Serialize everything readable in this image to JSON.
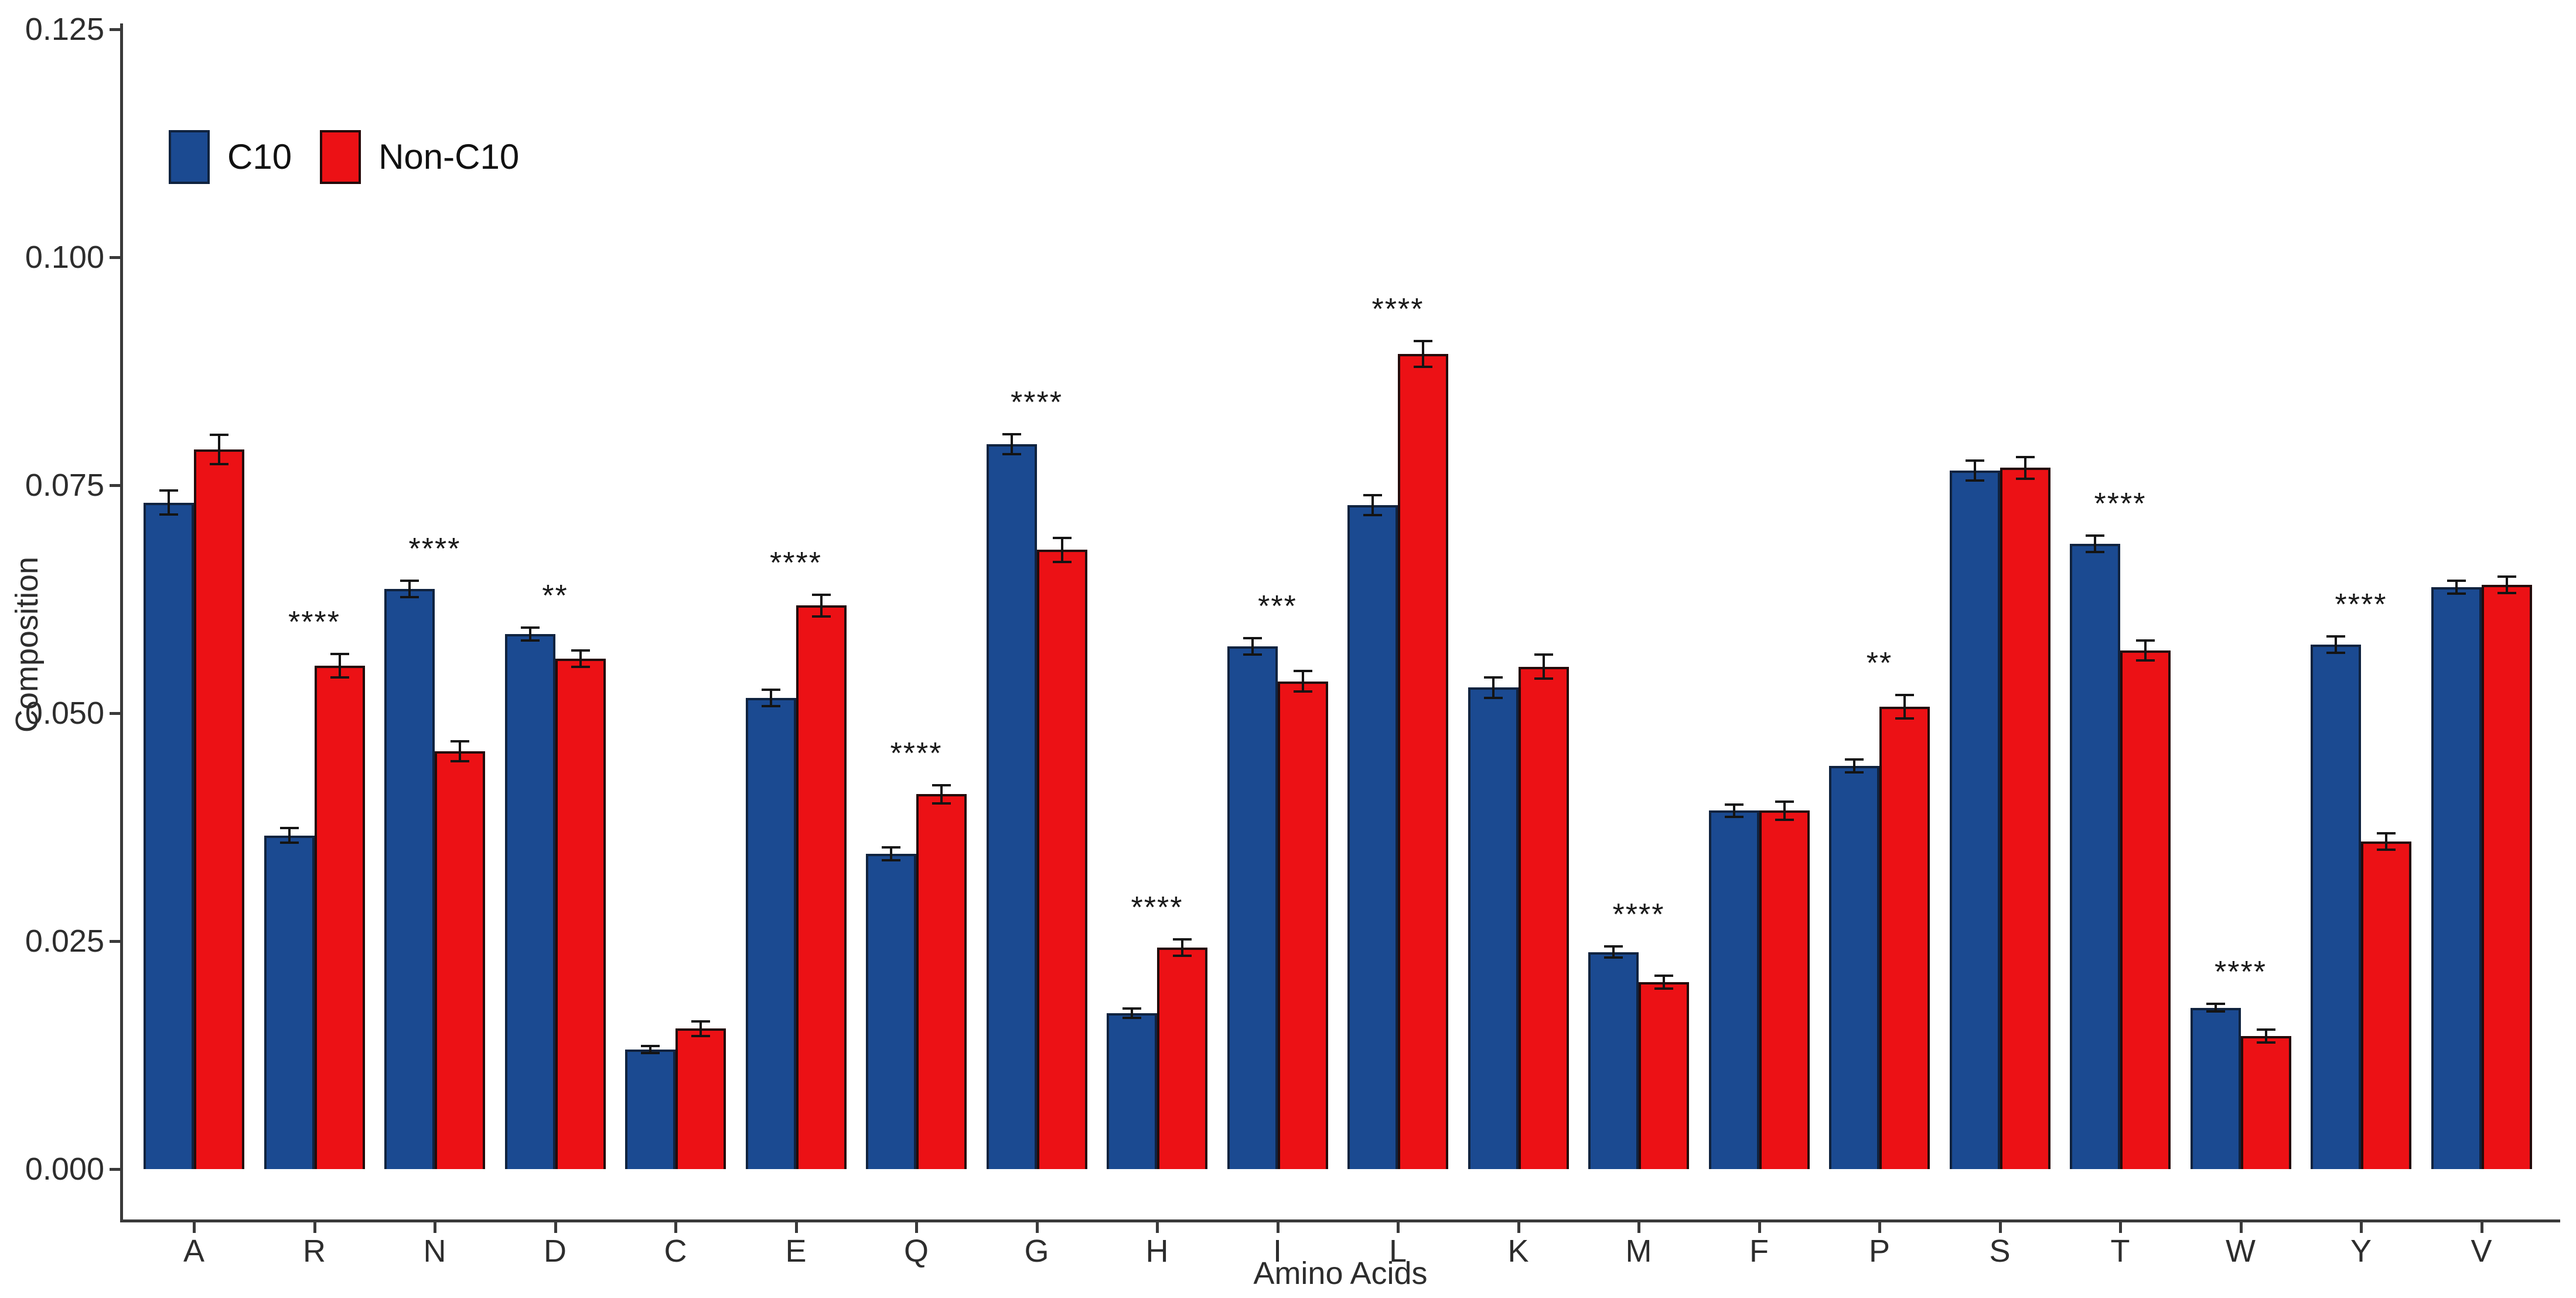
{
  "figure": {
    "background": "#ffffff",
    "axis_color": "#3a3a3a",
    "text_color": "#2d2d2d"
  },
  "chart_data": {
    "type": "bar",
    "title": "",
    "xlabel": "Amino Acids",
    "ylabel": "Composition",
    "ylim": [
      0,
      0.125
    ],
    "grid": false,
    "legend_position": "top-left",
    "y_ticks": [
      {
        "label": "0.125",
        "value": 0.125
      },
      {
        "label": "0.100",
        "value": 0.1
      },
      {
        "label": "0.075",
        "value": 0.075
      },
      {
        "label": "0.050",
        "value": 0.05
      },
      {
        "label": "0.025",
        "value": 0.025
      },
      {
        "label": "0.000",
        "value": 0.0
      }
    ],
    "categories": [
      "A",
      "R",
      "N",
      "D",
      "C",
      "E",
      "Q",
      "G",
      "H",
      "I",
      "L",
      "K",
      "M",
      "F",
      "P",
      "S",
      "T",
      "W",
      "Y",
      "V"
    ],
    "series": [
      {
        "name": "C10",
        "color": "#1b4a91",
        "border_color": "#10233f",
        "values": [
          0.0731,
          0.0366,
          0.0636,
          0.0587,
          0.0131,
          0.0517,
          0.0346,
          0.0795,
          0.0171,
          0.0573,
          0.0728,
          0.0528,
          0.0238,
          0.0393,
          0.0442,
          0.0766,
          0.0686,
          0.0177,
          0.0575,
          0.0638
        ],
        "errors": [
          0.0013,
          0.0008,
          0.0009,
          0.0007,
          0.0004,
          0.0009,
          0.0007,
          0.0011,
          0.0005,
          0.0009,
          0.0011,
          0.0011,
          0.0006,
          0.0007,
          0.0007,
          0.0011,
          0.0009,
          0.0004,
          0.0009,
          0.0007
        ]
      },
      {
        "name": "Non-C10",
        "color": "#ec1115",
        "border_color": "#240b0b",
        "values": [
          0.0789,
          0.0552,
          0.0458,
          0.056,
          0.0154,
          0.0618,
          0.0411,
          0.0679,
          0.0243,
          0.0535,
          0.0894,
          0.0551,
          0.0205,
          0.0393,
          0.0507,
          0.0769,
          0.0569,
          0.0146,
          0.0359,
          0.0641
        ],
        "errors": [
          0.0016,
          0.0013,
          0.0011,
          0.0009,
          0.0008,
          0.0012,
          0.001,
          0.0013,
          0.0009,
          0.0011,
          0.0014,
          0.0013,
          0.0007,
          0.001,
          0.0013,
          0.0012,
          0.0011,
          0.0007,
          0.0009,
          0.0009
        ]
      }
    ],
    "significance": [
      "",
      "****",
      "****",
      "**",
      "",
      "****",
      "****",
      "****",
      "****",
      "***",
      "****",
      "",
      "****",
      "",
      "**",
      "",
      "****",
      "****",
      "****",
      ""
    ]
  }
}
